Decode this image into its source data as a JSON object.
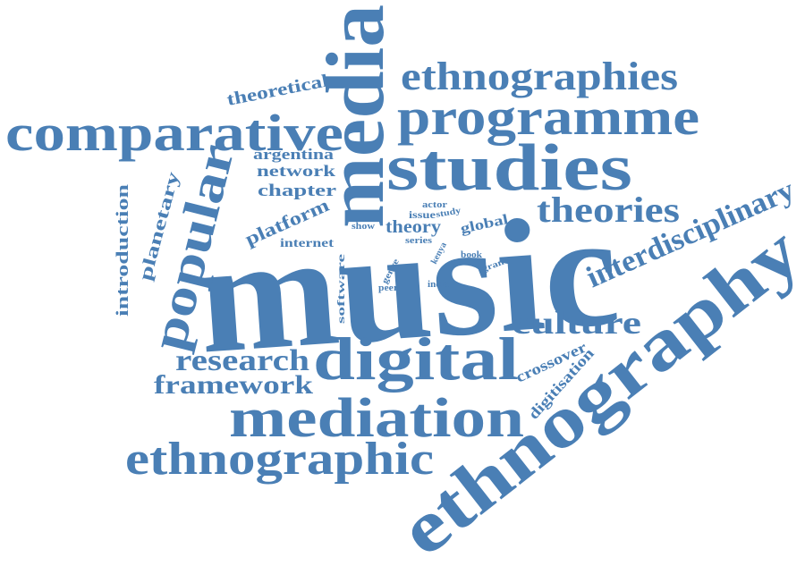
{
  "color": "#4a7fb5",
  "words": {
    "music": "music",
    "ethnography": "ethnography",
    "media": "media",
    "studies": "studies",
    "comparative": "comparative",
    "programme": "programme",
    "ethnographies": "ethnographies",
    "digital": "digital",
    "mediation": "mediation",
    "ethnographic": "ethnographic",
    "popular": "popular",
    "theories": "theories",
    "interdisciplinary": "interdisciplinary",
    "culture": "culture",
    "research": "research",
    "framework": "framework",
    "theoretical": "theoretical",
    "argentina": "argentina",
    "network": "network",
    "chapter": "chapter",
    "platform": "platform",
    "internet": "internet",
    "planetary": "planetary",
    "introduction": "introduction",
    "theory": "theory",
    "global": "global",
    "actor": "actor",
    "issue": "issue",
    "study": "study",
    "show": "show",
    "series": "series",
    "kenya": "kenya",
    "software": "software",
    "genre": "genre",
    "peer": "peer",
    "india": "india",
    "book": "book",
    "grant": "grant",
    "crossover": "crossover",
    "digitisation": "digitisation"
  }
}
